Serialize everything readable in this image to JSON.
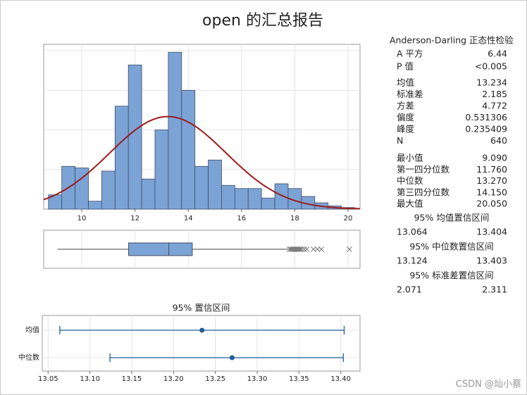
{
  "title": "open 的汇总报告",
  "summary": {
    "normality": {
      "title": "Anderson-Darling 正态性检验",
      "rows": [
        [
          "A 平方",
          6.44
        ],
        [
          "P 值",
          "<0.005"
        ]
      ]
    },
    "moments": [
      [
        "均值",
        13.234
      ],
      [
        "标准差",
        2.185
      ],
      [
        "方差",
        4.772
      ],
      [
        "偏度",
        0.531306
      ],
      [
        "峰度",
        0.235409
      ],
      [
        "N",
        640
      ]
    ],
    "quantiles": [
      [
        "最小值",
        {
          "value": 9.09,
          "label": "9.090"
        }
      ],
      [
        "第一四分位数",
        {
          "value": 11.76,
          "label": "11.760"
        }
      ],
      [
        "中位数",
        {
          "value": 13.27,
          "label": "13.270"
        }
      ],
      [
        "第三四分位数",
        {
          "value": 14.15,
          "label": "14.150"
        }
      ],
      [
        "最大值",
        {
          "value": 20.05,
          "label": "20.050"
        }
      ]
    ],
    "intervals": [
      {
        "title": "95% 均值置信区间",
        "low": 13.064,
        "high": 13.404
      },
      {
        "title": "95% 中位数置信区间",
        "low": 13.124,
        "high": 13.403
      },
      {
        "title": "95% 标准差置信区间",
        "low": 2.071,
        "high": 2.311
      }
    ]
  },
  "chart_data": [
    {
      "type": "histogram",
      "bins": [
        8.75,
        9.25,
        9.75,
        10.25,
        10.75,
        11.25,
        11.75,
        12.25,
        12.75,
        13.25,
        13.75,
        14.25,
        14.75,
        15.25,
        15.75,
        16.25,
        16.75,
        17.25,
        17.75,
        18.25,
        18.75,
        19.25,
        19.75,
        20.25
      ],
      "counts": [
        9,
        27,
        26,
        5,
        24,
        65,
        91,
        19,
        50,
        99,
        75,
        27,
        31,
        15,
        13,
        13,
        7,
        16,
        13,
        8,
        4,
        2,
        1
      ],
      "color": "#7ba3d6",
      "curve_color": "#9b1c1c",
      "xlim": [
        8.57,
        20.45
      ],
      "ylim": [
        0,
        104
      ],
      "xticks": [
        10,
        12,
        14,
        16,
        18,
        20
      ],
      "ygrid": [
        25,
        50,
        75,
        100
      ],
      "grid": true
    },
    {
      "type": "box",
      "min": 9.09,
      "q1": 11.76,
      "median": 13.27,
      "q3": 14.15,
      "whisker_high": 17.75,
      "outliers": [
        17.8,
        17.85,
        17.9,
        17.95,
        18.0,
        18.05,
        18.1,
        18.15,
        18.2,
        18.25,
        18.35,
        18.45,
        18.7,
        18.85,
        19.0,
        20.05
      ],
      "xlim": [
        8.57,
        20.45
      ],
      "color": "#7ba3d6",
      "grid": true
    },
    {
      "type": "interval",
      "title": "95% 置信区间",
      "categories": [
        "均值",
        "中位数"
      ],
      "estimates": [
        13.234,
        13.27
      ],
      "lows": [
        13.064,
        13.124
      ],
      "highs": [
        13.404,
        13.403
      ],
      "xlim": [
        13.043,
        13.423
      ],
      "xticks": [
        13.05,
        {
          "value": 13.1,
          "label": "13.10"
        },
        13.15,
        {
          "value": 13.2,
          "label": "13.20"
        },
        13.25,
        {
          "value": 13.3,
          "label": "13.30"
        },
        13.35,
        {
          "value": 13.4,
          "label": "13.40"
        }
      ],
      "color": "#1f5c99",
      "grid": true
    }
  ],
  "watermark": "CSDN @灿小蔡"
}
